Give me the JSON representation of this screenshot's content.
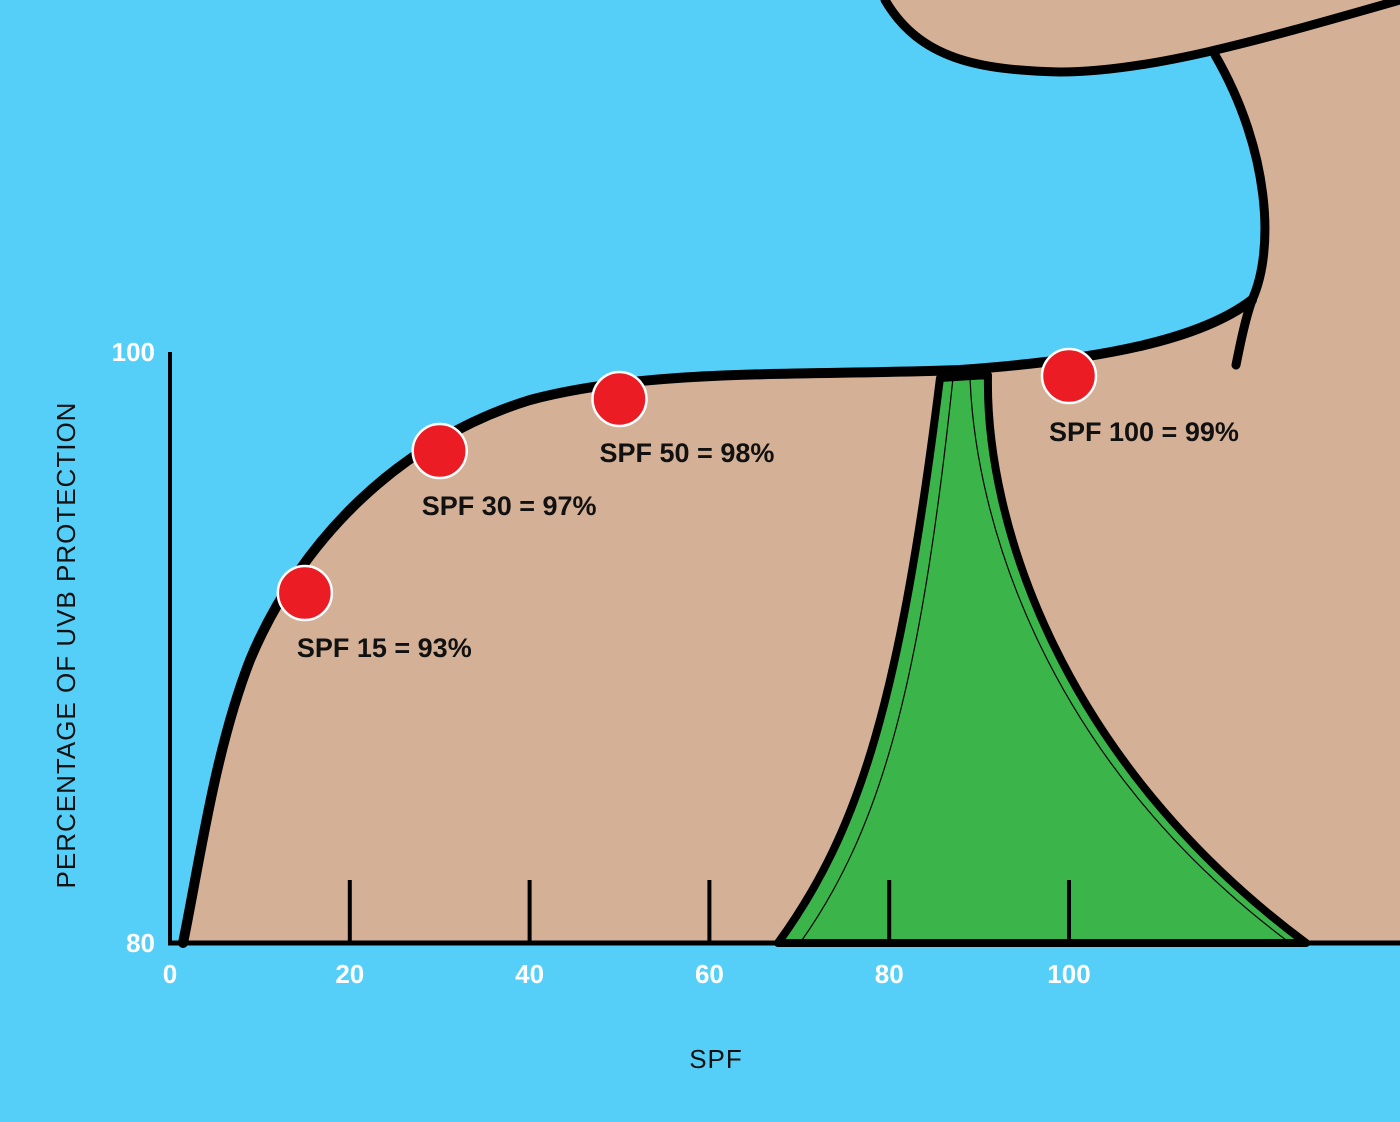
{
  "chart_data": {
    "type": "scatter",
    "title": "",
    "xlabel": "SPF",
    "ylabel": "PERCENTAGE OF UVB PROTECTION",
    "xlim": [
      0,
      100
    ],
    "ylim": [
      80,
      100
    ],
    "x_ticks": [
      {
        "value": 0,
        "label": "0"
      },
      {
        "value": 20,
        "label": "20"
      },
      {
        "value": 40,
        "label": "40"
      },
      {
        "value": 60,
        "label": "60"
      },
      {
        "value": 80,
        "label": "80"
      },
      {
        "value": 100,
        "label": "100"
      }
    ],
    "y_ticks": [
      {
        "value": 80,
        "label": "80"
      },
      {
        "value": 100,
        "label": "100"
      }
    ],
    "points": [
      {
        "x": 15,
        "y": 93,
        "label": "SPF 15 = 93%"
      },
      {
        "x": 30,
        "y": 97,
        "label": "SPF 30 = 97%"
      },
      {
        "x": 50,
        "y": 98,
        "label": "SPF 50 = 98%"
      },
      {
        "x": 100,
        "y": 99,
        "label": "SPF 100 = 99%"
      }
    ],
    "grid": false,
    "colors": {
      "background": "#55cff8",
      "fill": "#d4b196",
      "swimsuit": "#3bb54a",
      "point": "#ec1c24",
      "line": "#000000",
      "tick_label": "#ffffff"
    }
  }
}
